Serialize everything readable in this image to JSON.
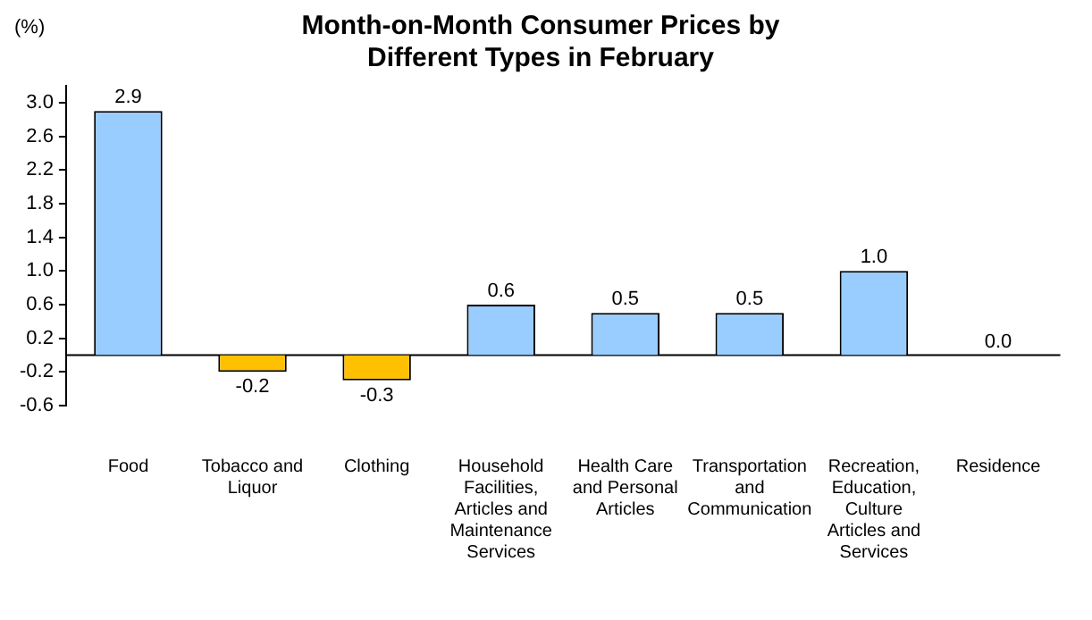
{
  "chart_data": {
    "type": "bar",
    "title": "Month-on-Month Consumer Prices by Different Types in February",
    "ylabel": "(%)",
    "categories": [
      "Food",
      "Tobacco and Liquor",
      "Clothing",
      "Household Facilities, Articles and Maintenance Services",
      "Health Care and Personal Articles",
      "Transportation and Communication",
      "Recreation, Education, Culture Articles and Services",
      "Residence"
    ],
    "values": [
      2.9,
      -0.2,
      -0.3,
      0.6,
      0.5,
      0.5,
      1.0,
      0.0
    ],
    "value_labels": [
      "2.9",
      "-0.2",
      "-0.3",
      "0.6",
      "0.5",
      "0.5",
      "1.0",
      "0.0"
    ],
    "colors": [
      "#99ccff",
      "#ffc000",
      "#ffc000",
      "#99ccff",
      "#99ccff",
      "#99ccff",
      "#99ccff",
      "#99ccff"
    ],
    "ylim": [
      -0.6,
      3.2
    ],
    "yticks": [
      {
        "value": -0.6,
        "label": "-0.6"
      },
      {
        "value": -0.2,
        "label": "-0.2"
      },
      {
        "value": 0.2,
        "label": "0.2"
      },
      {
        "value": 0.6,
        "label": "0.6"
      },
      {
        "value": 1.0,
        "label": "1.0"
      },
      {
        "value": 1.4,
        "label": "1.4"
      },
      {
        "value": 1.8,
        "label": "1.8"
      },
      {
        "value": 2.2,
        "label": "2.2"
      },
      {
        "value": 2.6,
        "label": "2.6"
      },
      {
        "value": 3.0,
        "label": "3.0"
      }
    ],
    "grid": false,
    "legend": false
  }
}
